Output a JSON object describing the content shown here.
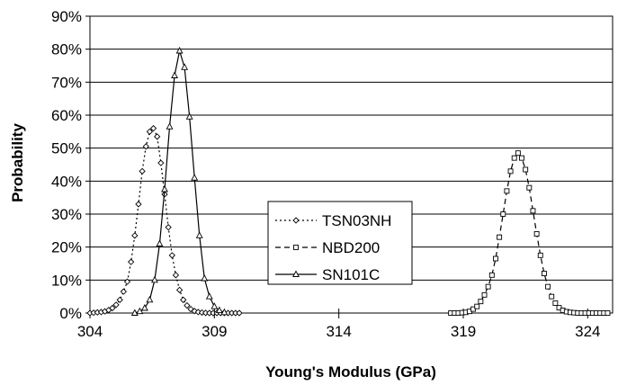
{
  "chart_data": {
    "type": "line",
    "title": "",
    "xlabel": "Young's Modulus (GPa)",
    "ylabel": "Probability",
    "xlim": [
      304,
      325
    ],
    "ylim": [
      0,
      90
    ],
    "x_ticks": [
      304,
      309,
      314,
      319,
      324
    ],
    "x_tick_labels": [
      "304",
      "309",
      "314",
      "319",
      "324"
    ],
    "y_ticks": [
      0,
      10,
      20,
      30,
      40,
      50,
      60,
      70,
      80,
      90
    ],
    "y_tick_labels": [
      "0%",
      "10%",
      "20%",
      "30%",
      "40%",
      "50%",
      "60%",
      "70%",
      "80%",
      "90%"
    ],
    "y_grid": true,
    "legend_position": "center",
    "series": [
      {
        "name": "TSN03NH",
        "line_style": "dotted",
        "marker": "diamond",
        "color": "#000000",
        "x": [
          304.0,
          304.15,
          304.3,
          304.45,
          304.6,
          304.75,
          304.9,
          305.05,
          305.2,
          305.35,
          305.5,
          305.65,
          305.8,
          305.95,
          306.1,
          306.25,
          306.4,
          306.55,
          306.7,
          306.85,
          307.0,
          307.15,
          307.3,
          307.45,
          307.6,
          307.75,
          307.9,
          308.05,
          308.2,
          308.35,
          308.5,
          308.65,
          308.8,
          308.95,
          309.1,
          309.25,
          309.4,
          309.55,
          309.7,
          309.85,
          310.0
        ],
        "y": [
          0.0,
          0.1,
          0.2,
          0.3,
          0.5,
          0.9,
          1.5,
          2.5,
          4.0,
          6.5,
          9.5,
          15.5,
          23.5,
          33.0,
          43.0,
          50.5,
          55.0,
          56.0,
          53.5,
          45.5,
          36.0,
          26.0,
          17.5,
          11.5,
          7.0,
          4.0,
          2.3,
          1.2,
          0.6,
          0.3,
          0.15,
          0.05,
          0.0,
          0.0,
          0.0,
          0.0,
          0.0,
          0.0,
          0.0,
          0.0,
          0.0
        ]
      },
      {
        "name": "NBD200",
        "line_style": "dashed",
        "marker": "square",
        "color": "#000000",
        "x": [
          318.5,
          318.65,
          318.8,
          318.95,
          319.1,
          319.25,
          319.4,
          319.55,
          319.7,
          319.85,
          320.0,
          320.15,
          320.3,
          320.45,
          320.6,
          320.75,
          320.9,
          321.05,
          321.2,
          321.35,
          321.5,
          321.65,
          321.8,
          321.95,
          322.1,
          322.25,
          322.4,
          322.55,
          322.7,
          322.85,
          323.0,
          323.15,
          323.3,
          323.45,
          323.6,
          323.75,
          323.9,
          324.05,
          324.2,
          324.35,
          324.5,
          324.65,
          324.8
        ],
        "y": [
          0.0,
          0.0,
          0.0,
          0.1,
          0.2,
          0.5,
          1.2,
          2.0,
          3.5,
          5.5,
          8.0,
          11.5,
          16.5,
          23.0,
          30.0,
          37.0,
          43.0,
          47.0,
          48.5,
          47.0,
          43.5,
          38.0,
          31.0,
          24.0,
          17.5,
          12.0,
          8.0,
          5.0,
          3.0,
          1.6,
          0.8,
          0.4,
          0.2,
          0.1,
          0.0,
          0.0,
          0.0,
          0.0,
          0.0,
          0.0,
          0.0,
          0.0,
          0.0
        ]
      },
      {
        "name": "SN101C",
        "line_style": "solid",
        "marker": "triangle",
        "color": "#000000",
        "x": [
          305.8,
          306.0,
          306.2,
          306.4,
          306.6,
          306.8,
          307.0,
          307.2,
          307.4,
          307.6,
          307.8,
          308.0,
          308.2,
          308.4,
          308.6,
          308.8,
          309.0,
          309.2,
          309.4
        ],
        "y": [
          0.0,
          0.5,
          1.5,
          4.0,
          10.0,
          21.0,
          37.5,
          56.5,
          72.0,
          79.5,
          74.5,
          59.5,
          41.0,
          23.5,
          10.5,
          5.0,
          2.0,
          0.8,
          0.2
        ]
      }
    ]
  }
}
